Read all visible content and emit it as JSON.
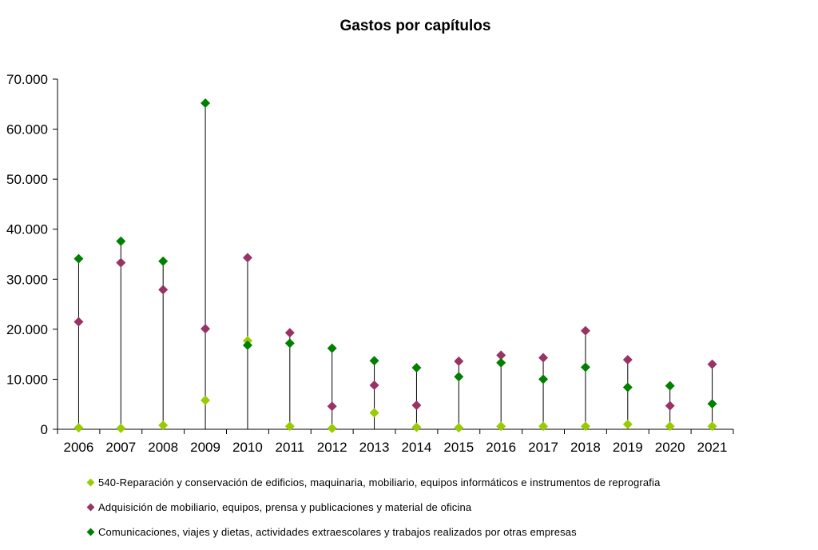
{
  "chart_data": {
    "type": "scatter",
    "title": "Gastos por capítulos",
    "xlabel": "",
    "ylabel": "",
    "categories": [
      "2006",
      "2007",
      "2008",
      "2009",
      "2010",
      "2011",
      "2012",
      "2013",
      "2014",
      "2015",
      "2016",
      "2017",
      "2018",
      "2019",
      "2020",
      "2021"
    ],
    "ylim": [
      0,
      70000
    ],
    "yticks": [
      0,
      10000,
      20000,
      30000,
      40000,
      50000,
      60000,
      70000
    ],
    "ytick_labels": [
      "0",
      "10.000",
      "20.000",
      "30.000",
      "40.000",
      "50.000",
      "60.000",
      "70.000"
    ],
    "grid": false,
    "drop_lines": true,
    "legend_position": "bottom",
    "series": [
      {
        "name": "540-Reparación y conservación de edificios, maquinaria, mobiliario, equipos informáticos e instrumentos de reprografia",
        "color": "#99cc00",
        "values": [
          300,
          200,
          800,
          5800,
          17700,
          600,
          200,
          3300,
          400,
          300,
          600,
          600,
          600,
          1000,
          600,
          600
        ]
      },
      {
        "name": "Adquisición de mobiliario, equipos, prensa y publicaciones y material de oficina",
        "color": "#993366",
        "values": [
          21500,
          33300,
          27900,
          20100,
          34300,
          19300,
          4600,
          8800,
          4800,
          13600,
          14800,
          14300,
          19700,
          13900,
          4700,
          13000
        ]
      },
      {
        "name": "Comunicaciones, viajes y dietas, actividades extraescolares y trabajos realizados por otras empresas",
        "color": "#008000",
        "values": [
          34100,
          37600,
          33600,
          65200,
          16800,
          17200,
          16200,
          13700,
          12300,
          10500,
          13300,
          10000,
          12400,
          8400,
          8700,
          5100
        ]
      }
    ]
  }
}
